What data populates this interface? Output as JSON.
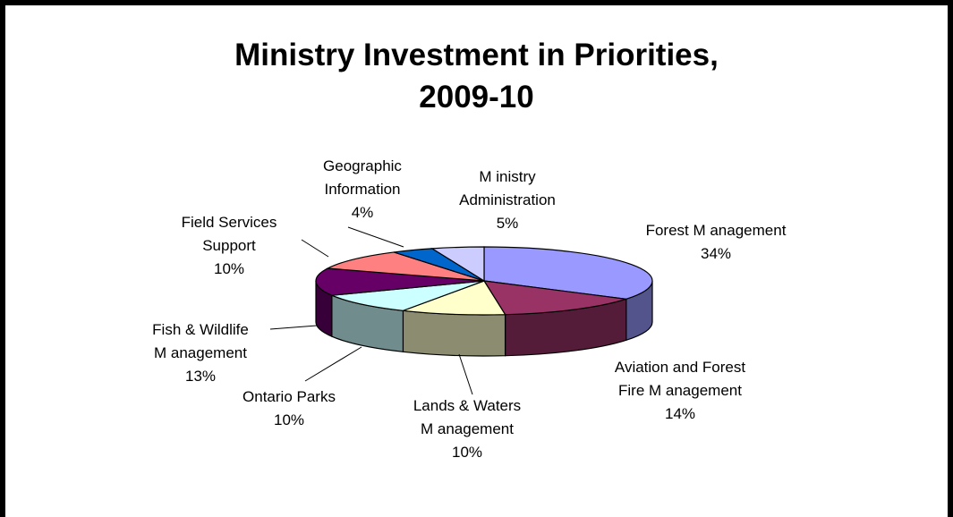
{
  "chart_data": {
    "type": "pie",
    "title_line1": "Ministry Investment in Priorities,",
    "title_line2": "2009-10",
    "slices": [
      {
        "name": "Forest Management",
        "label_lines": [
          "Forest M anagement"
        ],
        "value": 34,
        "pct": "34%",
        "color": "#9999ff"
      },
      {
        "name": "Aviation and Forest Fire Management",
        "label_lines": [
          "Aviation and Forest",
          "Fire M anagement"
        ],
        "value": 14,
        "pct": "14%",
        "color": "#993366"
      },
      {
        "name": "Lands & Waters Management",
        "label_lines": [
          "Lands & Waters",
          "M anagement"
        ],
        "value": 10,
        "pct": "10%",
        "color": "#ffffcc"
      },
      {
        "name": "Ontario Parks",
        "label_lines": [
          "Ontario Parks"
        ],
        "value": 10,
        "pct": "10%",
        "color": "#ccffff"
      },
      {
        "name": "Fish & Wildlife Management",
        "label_lines": [
          "Fish & Wildlife",
          "M anagement"
        ],
        "value": 13,
        "pct": "13%",
        "color": "#660066"
      },
      {
        "name": "Field Services Support",
        "label_lines": [
          "Field Services",
          "Support"
        ],
        "value": 10,
        "pct": "10%",
        "color": "#ff8080"
      },
      {
        "name": "Geographic Information",
        "label_lines": [
          "Geographic",
          "Information"
        ],
        "value": 4,
        "pct": "4%",
        "color": "#0066cc"
      },
      {
        "name": "Ministry Administration",
        "label_lines": [
          "M inistry",
          "Administration"
        ],
        "value": 5,
        "pct": "5%",
        "color": "#ccccff"
      }
    ]
  }
}
